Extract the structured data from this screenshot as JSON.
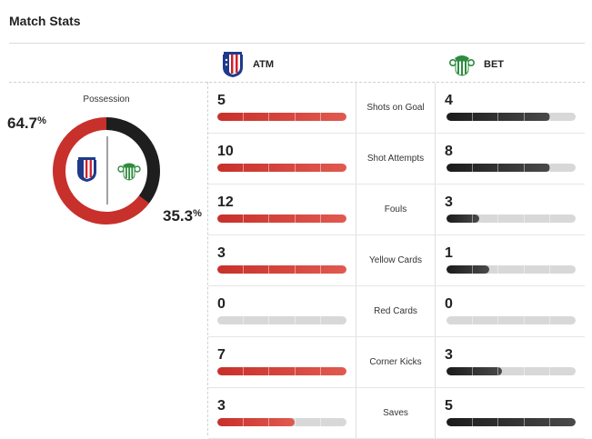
{
  "header": {
    "title": "Match Stats"
  },
  "teams": {
    "home": {
      "abbr": "ATM",
      "color": "#c8302b"
    },
    "away": {
      "abbr": "BET",
      "color": "#1e1e1e"
    }
  },
  "possession": {
    "label": "Possession",
    "home_value": "64.7",
    "away_value": "35.3",
    "unit": "%",
    "home_pct": 64.7,
    "away_pct": 35.3
  },
  "stats": [
    {
      "label": "Shots on Goal",
      "home": "5",
      "away": "4",
      "home_frac": 1.0,
      "away_frac": 0.8
    },
    {
      "label": "Shot Attempts",
      "home": "10",
      "away": "8",
      "home_frac": 1.0,
      "away_frac": 0.8
    },
    {
      "label": "Fouls",
      "home": "12",
      "away": "3",
      "home_frac": 1.0,
      "away_frac": 0.25
    },
    {
      "label": "Yellow Cards",
      "home": "3",
      "away": "1",
      "home_frac": 1.0,
      "away_frac": 0.33
    },
    {
      "label": "Red Cards",
      "home": "0",
      "away": "0",
      "home_frac": 0.0,
      "away_frac": 0.0
    },
    {
      "label": "Corner Kicks",
      "home": "7",
      "away": "3",
      "home_frac": 1.0,
      "away_frac": 0.43
    },
    {
      "label": "Saves",
      "home": "3",
      "away": "5",
      "home_frac": 0.6,
      "away_frac": 1.0
    }
  ]
}
